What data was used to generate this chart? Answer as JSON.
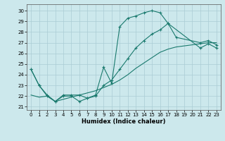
{
  "xlabel": "Humidex (Indice chaleur)",
  "bg_color": "#cce8ec",
  "grid_color": "#aaccd4",
  "line_color": "#1a7a6e",
  "xlim": [
    -0.5,
    23.5
  ],
  "ylim": [
    20.7,
    30.6
  ],
  "xticks": [
    0,
    1,
    2,
    3,
    4,
    5,
    6,
    7,
    8,
    9,
    10,
    11,
    12,
    13,
    14,
    15,
    16,
    17,
    18,
    19,
    20,
    21,
    22,
    23
  ],
  "yticks": [
    21,
    22,
    23,
    24,
    25,
    26,
    27,
    28,
    29,
    30
  ],
  "line1_x": [
    0,
    1,
    2,
    3,
    4,
    5,
    6,
    7,
    8,
    9,
    10,
    11,
    12,
    13,
    14,
    15,
    16,
    17,
    18,
    21,
    22,
    23
  ],
  "line1_y": [
    24.5,
    23.0,
    22.0,
    21.5,
    22.0,
    22.0,
    21.5,
    21.8,
    22.1,
    24.7,
    23.2,
    28.5,
    29.3,
    29.5,
    29.8,
    30.0,
    29.8,
    28.8,
    27.5,
    27.0,
    27.2,
    26.8
  ],
  "line2_x": [
    0,
    1,
    2,
    3,
    4,
    5,
    6,
    7,
    8,
    9,
    10,
    11,
    12,
    13,
    14,
    15,
    16,
    17,
    21,
    22,
    23
  ],
  "line2_y": [
    24.5,
    23.0,
    22.1,
    21.5,
    22.1,
    22.1,
    22.1,
    21.8,
    22.0,
    23.0,
    23.5,
    24.5,
    25.5,
    26.5,
    27.2,
    27.8,
    28.2,
    28.8,
    26.5,
    26.9,
    26.5
  ],
  "line3_x": [
    0,
    1,
    2,
    3,
    4,
    5,
    6,
    7,
    8,
    9,
    10,
    11,
    12,
    13,
    14,
    15,
    16,
    17,
    18,
    19,
    20,
    21,
    22,
    23
  ],
  "line3_y": [
    22.1,
    21.9,
    22.0,
    21.5,
    21.7,
    21.9,
    22.1,
    22.3,
    22.5,
    22.8,
    23.1,
    23.5,
    24.0,
    24.6,
    25.1,
    25.6,
    26.1,
    26.4,
    26.6,
    26.7,
    26.8,
    26.9,
    27.0,
    27.0
  ]
}
